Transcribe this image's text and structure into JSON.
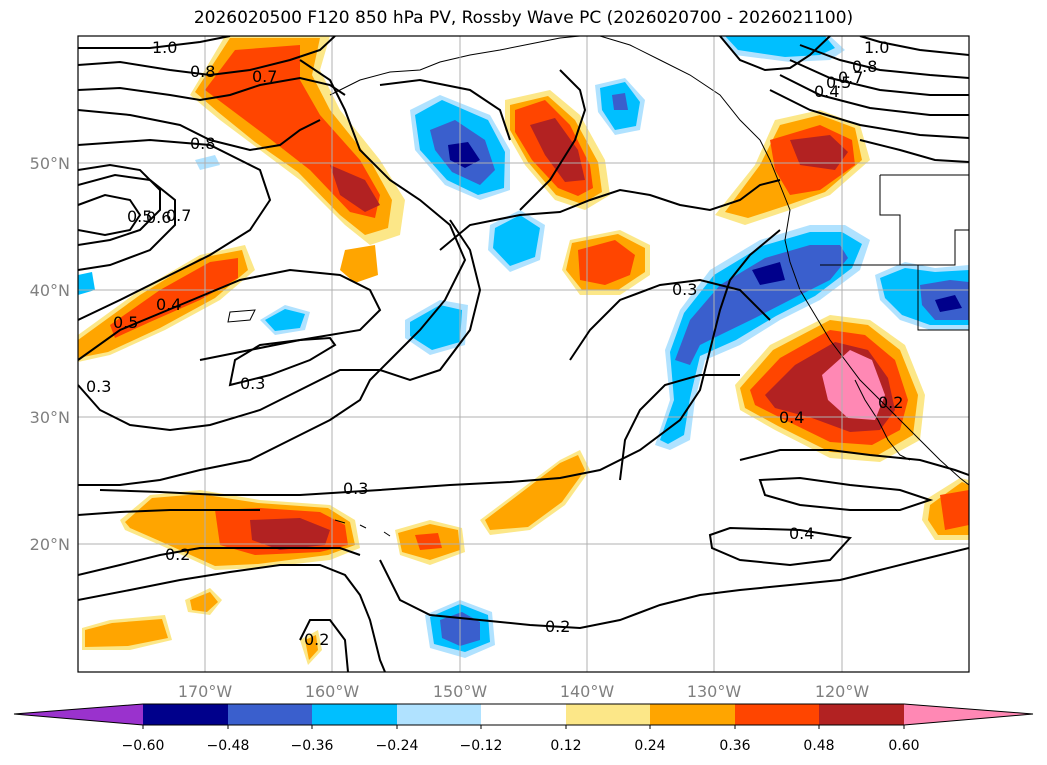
{
  "title": "2026020500 F120 850 hPa PV, Rossby Wave PC (2026020700 - 2026021100)",
  "map": {
    "lon_labels": [
      "170°W",
      "160°W",
      "150°W",
      "140°W",
      "130°W",
      "120°W"
    ],
    "lat_labels": [
      "50°N",
      "40°N",
      "30°N",
      "20°N"
    ]
  },
  "contour_labels": [
    {
      "text": "1.0"
    },
    {
      "text": "0.8"
    },
    {
      "text": "0.7"
    },
    {
      "text": "0.8"
    },
    {
      "text": "0.5"
    },
    {
      "text": "0.6"
    },
    {
      "text": "0.7"
    },
    {
      "text": "0.5"
    },
    {
      "text": "0.4"
    },
    {
      "text": "0.3"
    },
    {
      "text": "0.3"
    },
    {
      "text": "0.3"
    },
    {
      "text": "0.3"
    },
    {
      "text": "0.2"
    },
    {
      "text": "0.2"
    },
    {
      "text": "0.2"
    },
    {
      "text": "0.4"
    },
    {
      "text": "0.4"
    },
    {
      "text": "0.2"
    },
    {
      "text": "1.0"
    },
    {
      "text": "0.8"
    },
    {
      "text": "0.7"
    },
    {
      "text": "0.5"
    },
    {
      "text": "0.4"
    }
  ],
  "colorbar": {
    "colors": [
      "#9a32cd",
      "#00008b",
      "#3a5fcd",
      "#00bfff",
      "#b0e2ff",
      "#ffffff",
      "#fce788",
      "#ffa500",
      "#ff4500",
      "#b22222",
      "#ff88b4"
    ],
    "tick_labels": [
      "−0.60",
      "−0.48",
      "−0.36",
      "−0.24",
      "−0.12",
      "0.12",
      "0.24",
      "0.36",
      "0.48",
      "0.60"
    ]
  }
}
